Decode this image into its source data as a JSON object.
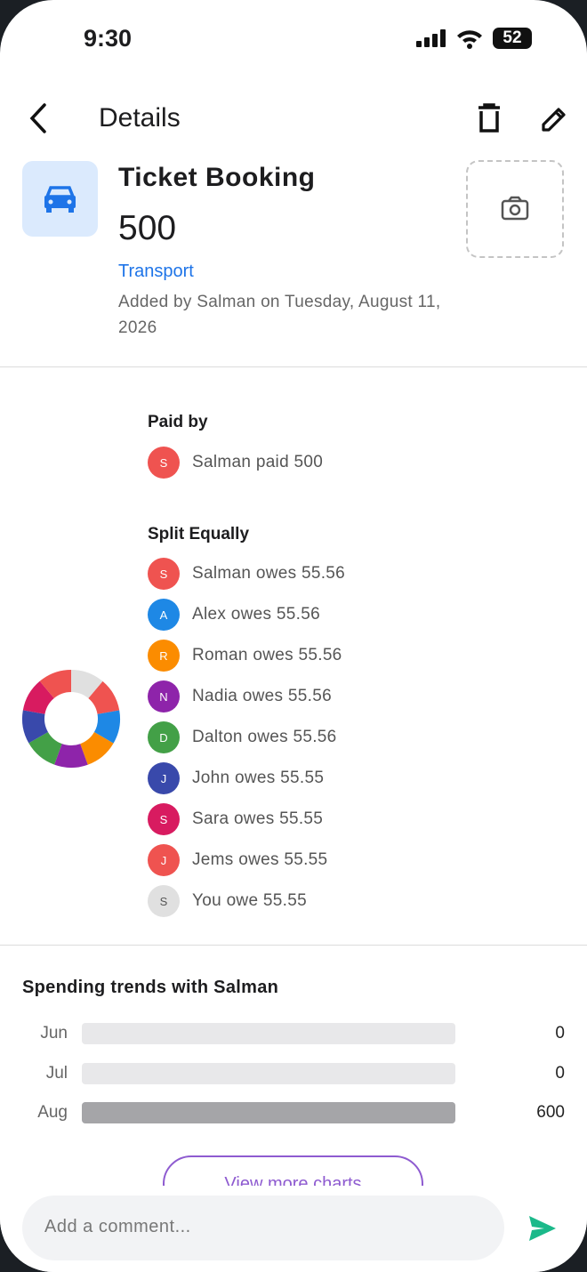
{
  "status_bar": {
    "time": "9:30",
    "battery": "52"
  },
  "header": {
    "title": "Details"
  },
  "expense": {
    "title": "Ticket Booking",
    "amount": 500,
    "category": "Transport",
    "added_info": "Added by Salman on Tuesday, August 11, 2026"
  },
  "paid_by": {
    "title": "Paid by",
    "initial": "S",
    "name": "Salman",
    "verb": "paid",
    "amount": 500,
    "color": "#ef5350"
  },
  "split": {
    "title": "Split Equally",
    "items": [
      {
        "initial": "S",
        "name": "Salman",
        "verb": "owes",
        "amount": 55.56,
        "color": "#ef5350"
      },
      {
        "initial": "A",
        "name": "Alex",
        "verb": "owes",
        "amount": 55.56,
        "color": "#1e88e5"
      },
      {
        "initial": "R",
        "name": "Roman",
        "verb": "owes",
        "amount": 55.56,
        "color": "#fb8c00"
      },
      {
        "initial": "N",
        "name": "Nadia",
        "verb": "owes",
        "amount": 55.56,
        "color": "#8e24aa"
      },
      {
        "initial": "D",
        "name": "Dalton",
        "verb": "owes",
        "amount": 55.56,
        "color": "#43a047"
      },
      {
        "initial": "J",
        "name": "John",
        "verb": "owes",
        "amount": 55.55,
        "color": "#3949ab"
      },
      {
        "initial": "S",
        "name": "Sara",
        "verb": "owes",
        "amount": 55.55,
        "color": "#d81b60"
      },
      {
        "initial": "J",
        "name": "Jems",
        "verb": "owes",
        "amount": 55.55,
        "color": "#ef5350"
      },
      {
        "initial": "S",
        "name": "You",
        "verb": "owe",
        "amount": 55.55,
        "color": "#e0e0e0"
      }
    ]
  },
  "trends": {
    "title": "Spending trends with Salman",
    "categories": [
      "Jun",
      "Jul",
      "Aug"
    ],
    "values": [
      0,
      0,
      600
    ],
    "button": "View more charts"
  },
  "comment": {
    "placeholder": "Add a comment..."
  }
}
